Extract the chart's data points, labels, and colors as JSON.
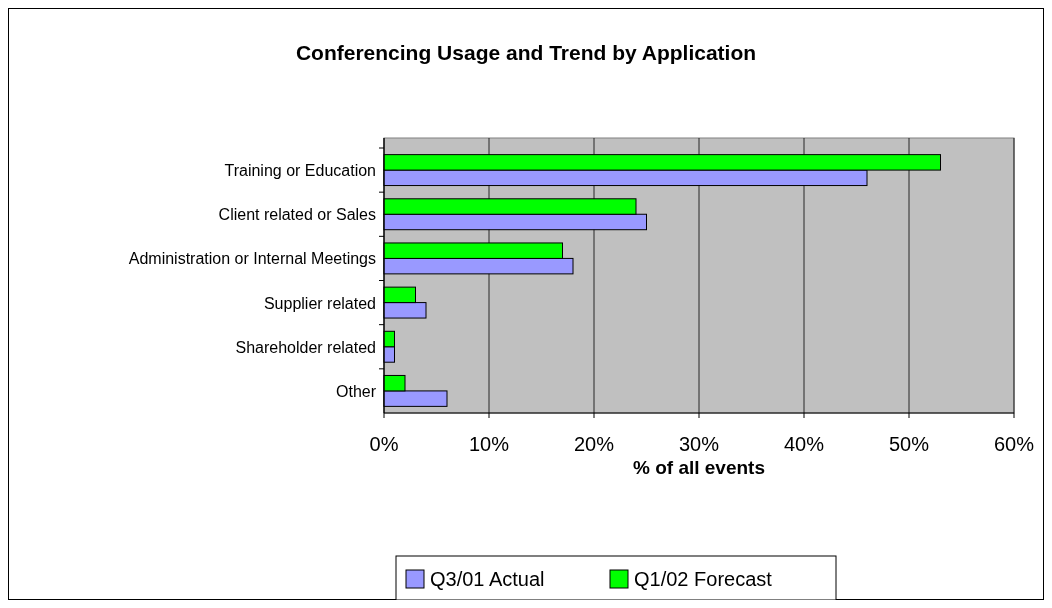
{
  "chart_data": {
    "type": "bar",
    "orientation": "horizontal",
    "title": "Conferencing Usage and Trend by Application",
    "xlabel": "% of all events",
    "categories": [
      "Training or Education",
      "Client related or Sales",
      "Administration or Internal Meetings",
      "Supplier related",
      "Shareholder related",
      "Other"
    ],
    "series": [
      {
        "name": "Q3/01 Actual",
        "color": "#9999ff",
        "values": [
          46,
          25,
          18,
          4,
          1,
          6
        ]
      },
      {
        "name": "Q1/02 Forecast",
        "color": "#00ff00",
        "values": [
          53,
          24,
          17,
          3,
          1,
          2
        ]
      }
    ],
    "xlim": [
      0,
      60
    ],
    "xticks": [
      {
        "value": 0,
        "label": "0%"
      },
      {
        "value": 10,
        "label": "10%"
      },
      {
        "value": 20,
        "label": "20%"
      },
      {
        "value": 30,
        "label": "30%"
      },
      {
        "value": 40,
        "label": "40%"
      },
      {
        "value": 50,
        "label": "50%"
      },
      {
        "value": 60,
        "label": "60%"
      }
    ],
    "grid": "x",
    "legend": "bottom"
  }
}
